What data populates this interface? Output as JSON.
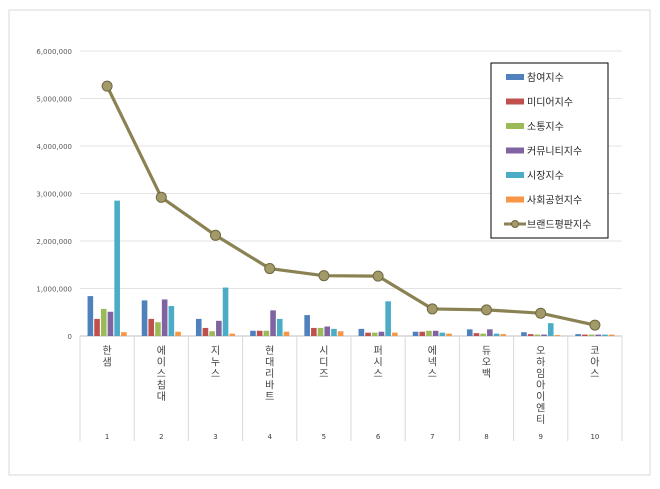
{
  "chart_data": {
    "type": "bar",
    "title": "",
    "xlabel": "",
    "ylabel": "",
    "ylim": [
      0,
      6000000
    ],
    "yticks": [
      "0",
      "1,000,000",
      "2,000,000",
      "3,000,000",
      "4,000,000",
      "5,000,000",
      "6,000,000"
    ],
    "grid": true,
    "legend_position": "top-right",
    "categories": [
      "한샘",
      "에이스침대",
      "지누스",
      "현대리바트",
      "시디즈",
      "퍼시스",
      "에넥스",
      "듀오백",
      "오하임아이엔티",
      "코아스"
    ],
    "category_numbers": [
      "1",
      "2",
      "3",
      "4",
      "5",
      "6",
      "7",
      "8",
      "9",
      "10"
    ],
    "series": [
      {
        "name": "참여지수",
        "color": "#4f81bd",
        "values": [
          840000,
          750000,
          360000,
          110000,
          440000,
          150000,
          90000,
          140000,
          80000,
          40000
        ]
      },
      {
        "name": "미디어지수",
        "color": "#c0504d",
        "values": [
          360000,
          360000,
          170000,
          110000,
          170000,
          70000,
          90000,
          60000,
          40000,
          30000
        ]
      },
      {
        "name": "소통지수",
        "color": "#9bbb59",
        "values": [
          570000,
          290000,
          100000,
          110000,
          170000,
          70000,
          110000,
          50000,
          30000,
          30000
        ]
      },
      {
        "name": "커뮤니티지수",
        "color": "#8064a2",
        "values": [
          510000,
          770000,
          320000,
          540000,
          200000,
          90000,
          110000,
          140000,
          30000,
          30000
        ]
      },
      {
        "name": "시장지수",
        "color": "#4bacc6",
        "values": [
          2850000,
          630000,
          1020000,
          360000,
          150000,
          730000,
          70000,
          50000,
          270000,
          30000
        ]
      },
      {
        "name": "사회공헌지수",
        "color": "#f79646",
        "values": [
          80000,
          90000,
          50000,
          90000,
          100000,
          70000,
          50000,
          40000,
          20000,
          30000
        ]
      }
    ],
    "line_series": {
      "name": "브랜드평판지수",
      "color": "#8b8253",
      "values": [
        5260000,
        2920000,
        2120000,
        1420000,
        1270000,
        1260000,
        570000,
        550000,
        480000,
        230000
      ]
    }
  }
}
